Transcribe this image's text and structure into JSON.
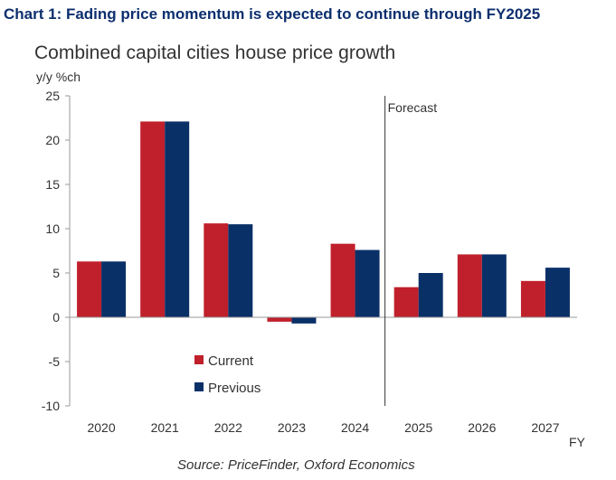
{
  "header": {
    "title": "Chart 1: Fading price momentum is expected to continue through FY2025",
    "subtitle": "Combined capital cities house price growth",
    "y_unit": "y/y %ch",
    "source": "Source: PriceFinder, Oxford Economics"
  },
  "chart_data": {
    "type": "bar",
    "categories": [
      "2020",
      "2021",
      "2022",
      "2023",
      "2024",
      "2025",
      "2026",
      "2027"
    ],
    "series": [
      {
        "name": "Current",
        "color": "#c0202c",
        "values": [
          6.3,
          22.1,
          10.6,
          -0.5,
          8.3,
          3.4,
          7.1,
          4.1
        ]
      },
      {
        "name": "Previous",
        "color": "#0a3068",
        "values": [
          6.3,
          22.1,
          10.5,
          -0.7,
          7.6,
          5.0,
          7.1,
          5.6
        ]
      }
    ],
    "ylim": [
      -10,
      25
    ],
    "yticks": [
      "25",
      "20",
      "15",
      "10",
      "5",
      "0",
      "-5",
      "-10"
    ],
    "ylabel": "y/y %ch",
    "xlabel": "FY",
    "forecast_label": "Forecast",
    "forecast_starts_at": "2025",
    "legend_position": "lower-left",
    "grid": false
  }
}
